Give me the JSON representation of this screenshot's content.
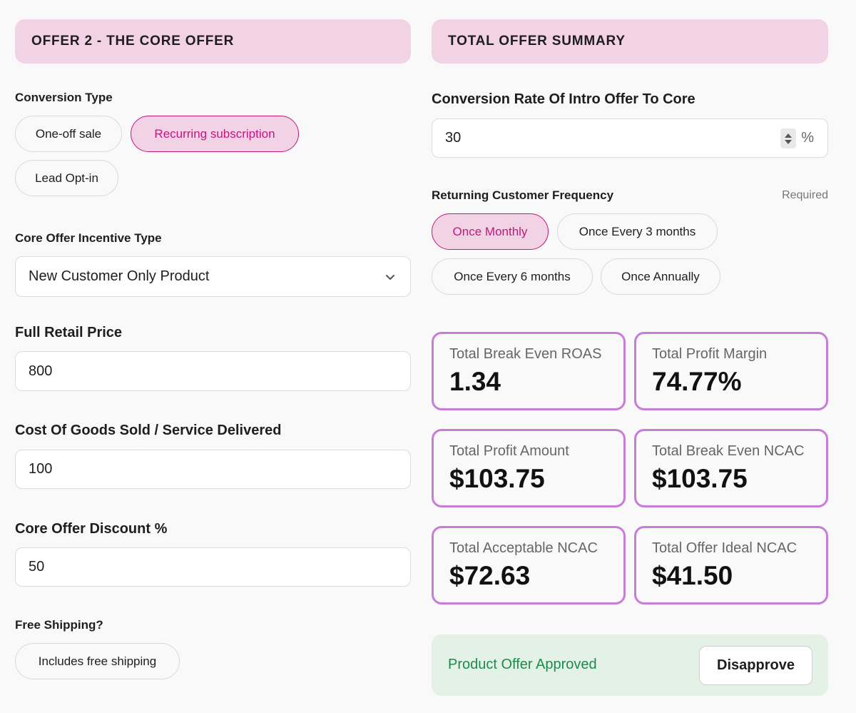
{
  "left": {
    "header": "OFFER 2 - THE CORE OFFER",
    "conversion_type": {
      "label": "Conversion Type",
      "options": [
        "One-off sale",
        "Recurring subscription",
        "Lead Opt-in"
      ],
      "selected": "Recurring subscription"
    },
    "incentive_type": {
      "label": "Core Offer Incentive Type",
      "value": "New Customer Only Product"
    },
    "retail_price": {
      "label": "Full Retail Price",
      "value": "800"
    },
    "cogs": {
      "label": "Cost Of Goods Sold / Service Delivered",
      "value": "100"
    },
    "discount": {
      "label": "Core Offer Discount %",
      "value": "50"
    },
    "free_shipping": {
      "label": "Free Shipping?",
      "option": "Includes free shipping"
    }
  },
  "right": {
    "header": "TOTAL OFFER SUMMARY",
    "conversion_rate": {
      "label": "Conversion Rate Of Intro Offer To Core",
      "value": "30",
      "unit": "%"
    },
    "frequency": {
      "label": "Returning Customer Frequency",
      "required": "Required",
      "options": [
        "Once Monthly",
        "Once Every 3 months",
        "Once Every 6 months",
        "Once Annually"
      ],
      "selected": "Once Monthly"
    },
    "metrics": [
      {
        "label": "Total Break Even ROAS",
        "value": "1.34"
      },
      {
        "label": "Total Profit Margin",
        "value": "74.77%"
      },
      {
        "label": "Total Profit Amount",
        "value": "$103.75"
      },
      {
        "label": "Total Break Even NCAC",
        "value": "$103.75"
      },
      {
        "label": "Total Acceptable NCAC",
        "value": "$72.63"
      },
      {
        "label": "Total Offer Ideal NCAC",
        "value": "$41.50"
      }
    ],
    "approval": {
      "status": "Product Offer Approved",
      "button": "Disapprove"
    }
  },
  "colors": {
    "header_bg": "#f2d2e5",
    "accent": "#c2177e",
    "metric_border": "#c77dd6",
    "approval_bg": "#e3f1e6",
    "approval_text": "#1f8a4c"
  },
  "icons": {
    "select_chevron": "chevron-down-icon",
    "stepper": "stepper-arrows-icon"
  }
}
